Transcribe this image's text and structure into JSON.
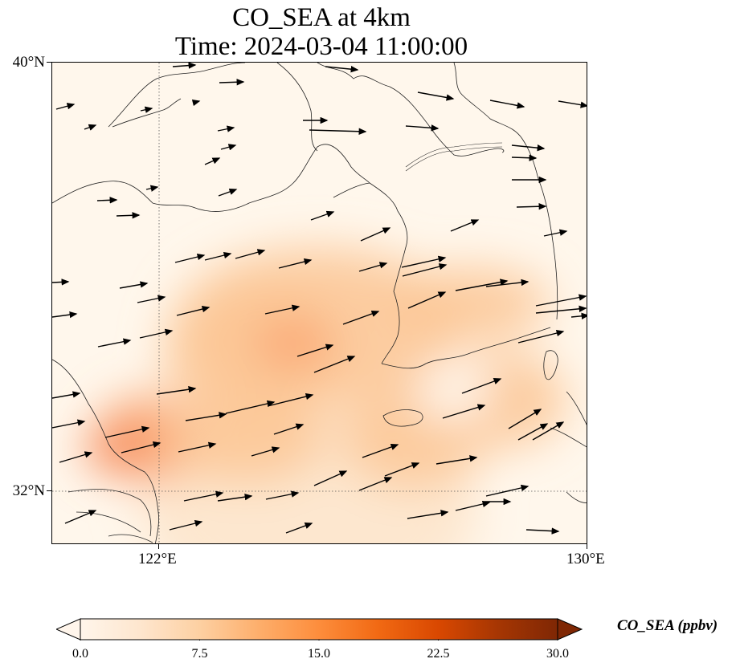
{
  "title_line1": "CO_SEA at 4km",
  "title_line2": "Time: 2024-03-04 11:00:00",
  "lat_labels": [
    "40°N",
    "32°N"
  ],
  "lon_labels": [
    "122°E",
    "130°E"
  ],
  "map_extent": {
    "lon_min": 120,
    "lon_max": 130,
    "lat_min": 31,
    "lat_max": 40
  },
  "gridlines": {
    "lons": [
      122,
      130
    ],
    "lats": [
      32,
      40
    ],
    "style": "dotted"
  },
  "colorbar": {
    "label": "CO_SEA (ppbv)",
    "min": 0.0,
    "max": 30.0,
    "tick_labels": [
      "0.0",
      "7.5",
      "15.0",
      "22.5",
      "30.0"
    ],
    "tick_values": [
      0.0,
      7.5,
      15.0,
      22.5,
      30.0
    ],
    "colormap": "Oranges",
    "extend": "both",
    "colors": [
      "#fff5eb",
      "#fee6ce",
      "#fdd0a2",
      "#fdae6b",
      "#fd8d3c",
      "#f16913",
      "#d94801",
      "#a63603",
      "#7f2704"
    ]
  },
  "wind_vectors_shown": true,
  "field_colors": {
    "background": "#fff7ec",
    "low": "#fde5cc",
    "mid": "#fcc898",
    "high": "#f9a36f",
    "peak": "#f68b5a"
  }
}
